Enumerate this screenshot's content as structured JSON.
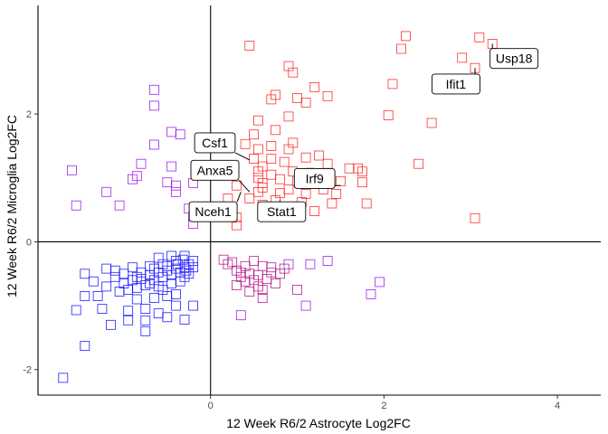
{
  "chart_data": {
    "type": "scatter",
    "xlabel": "12 Week R6/2 Astrocyte Log2FC",
    "ylabel": "12 Week R6/2 Microglia Log2FC",
    "xlim": [
      -1.99,
      4.5
    ],
    "ylim": [
      -2.4,
      3.7
    ],
    "xticks": [
      0,
      2,
      4
    ],
    "yticks": [
      -2,
      0,
      2
    ],
    "xtick_labels": [
      "0",
      "2",
      "4"
    ],
    "ytick_labels": [
      "-2",
      "0",
      "2"
    ],
    "reference_lines": {
      "x": 0,
      "y": 0
    },
    "grid": false,
    "legend": "none",
    "marker": "open-square",
    "groups": [
      {
        "color": "#ff3030",
        "points": [
          [
            0.45,
            3.07
          ],
          [
            2.25,
            3.22
          ],
          [
            2.2,
            3.02
          ],
          [
            3.1,
            3.2
          ],
          [
            3.25,
            3.1
          ],
          [
            2.9,
            2.88
          ],
          [
            3.05,
            2.72
          ],
          [
            0.9,
            2.75
          ],
          [
            0.95,
            2.65
          ],
          [
            1.2,
            2.42
          ],
          [
            1.35,
            2.28
          ],
          [
            2.1,
            2.47
          ],
          [
            0.75,
            2.3
          ],
          [
            0.7,
            2.23
          ],
          [
            1.0,
            2.25
          ],
          [
            1.1,
            2.18
          ],
          [
            2.05,
            1.98
          ],
          [
            0.9,
            1.96
          ],
          [
            0.55,
            1.9
          ],
          [
            2.55,
            1.86
          ],
          [
            0.75,
            1.75
          ],
          [
            0.5,
            1.68
          ],
          [
            0.4,
            1.53
          ],
          [
            0.7,
            1.5
          ],
          [
            0.95,
            1.55
          ],
          [
            0.55,
            1.45
          ],
          [
            0.9,
            1.45
          ],
          [
            1.1,
            1.32
          ],
          [
            1.25,
            1.35
          ],
          [
            0.5,
            1.3
          ],
          [
            0.7,
            1.3
          ],
          [
            0.85,
            1.25
          ],
          [
            1.35,
            1.22
          ],
          [
            2.4,
            1.22
          ],
          [
            0.55,
            1.1
          ],
          [
            0.6,
            1.18
          ],
          [
            0.7,
            1.05
          ],
          [
            0.95,
            1.1
          ],
          [
            1.15,
            1.08
          ],
          [
            1.6,
            1.15
          ],
          [
            1.7,
            1.15
          ],
          [
            1.75,
            1.1
          ],
          [
            0.15,
            1.05
          ],
          [
            0.55,
            1.0
          ],
          [
            0.6,
            0.92
          ],
          [
            0.8,
            0.98
          ],
          [
            1.0,
            0.95
          ],
          [
            1.2,
            1.0
          ],
          [
            1.5,
            0.95
          ],
          [
            1.75,
            0.93
          ],
          [
            0.3,
            0.88
          ],
          [
            0.6,
            0.85
          ],
          [
            0.9,
            0.82
          ],
          [
            1.3,
            0.82
          ],
          [
            0.55,
            0.78
          ],
          [
            0.8,
            0.76
          ],
          [
            1.1,
            0.75
          ],
          [
            1.45,
            0.75
          ],
          [
            0.2,
            0.68
          ],
          [
            0.45,
            0.68
          ],
          [
            0.75,
            0.65
          ],
          [
            1.05,
            0.62
          ],
          [
            1.4,
            0.6
          ],
          [
            1.8,
            0.6
          ],
          [
            0.6,
            0.58
          ],
          [
            0.95,
            0.55
          ],
          [
            0.25,
            0.52
          ],
          [
            1.2,
            0.48
          ],
          [
            0.3,
            0.38
          ],
          [
            3.05,
            0.37
          ],
          [
            0.3,
            0.26
          ]
        ]
      },
      {
        "color": "#a020f0",
        "points": [
          [
            -0.65,
            2.38
          ],
          [
            -0.65,
            2.13
          ],
          [
            -0.45,
            1.72
          ],
          [
            -0.35,
            1.68
          ],
          [
            -0.65,
            1.52
          ],
          [
            -0.8,
            1.22
          ],
          [
            -1.6,
            1.12
          ],
          [
            -0.45,
            1.18
          ],
          [
            -0.85,
            1.03
          ],
          [
            -0.9,
            0.98
          ],
          [
            -0.5,
            0.93
          ],
          [
            -0.2,
            0.92
          ],
          [
            -1.2,
            0.78
          ],
          [
            -0.4,
            0.88
          ],
          [
            -0.4,
            0.78
          ],
          [
            -1.55,
            0.57
          ],
          [
            -1.05,
            0.57
          ],
          [
            -0.25,
            0.52
          ],
          [
            -0.2,
            0.4
          ],
          [
            -0.2,
            0.28
          ],
          [
            1.35,
            -0.3
          ],
          [
            0.9,
            -0.35
          ],
          [
            1.95,
            -0.63
          ],
          [
            1.85,
            -0.82
          ],
          [
            1.1,
            -1.0
          ],
          [
            0.35,
            -1.15
          ],
          [
            1.15,
            -0.35
          ]
        ]
      },
      {
        "color": "#b8208f",
        "points": [
          [
            0.15,
            -0.28
          ],
          [
            0.25,
            -0.32
          ],
          [
            0.4,
            -0.38
          ],
          [
            0.6,
            -0.38
          ],
          [
            0.85,
            -0.42
          ],
          [
            0.3,
            -0.45
          ],
          [
            0.45,
            -0.5
          ],
          [
            0.55,
            -0.52
          ],
          [
            0.7,
            -0.48
          ],
          [
            0.35,
            -0.55
          ],
          [
            0.5,
            -0.6
          ],
          [
            0.65,
            -0.58
          ],
          [
            0.4,
            -0.62
          ],
          [
            0.55,
            -0.7
          ],
          [
            0.45,
            -0.78
          ],
          [
            0.6,
            -0.75
          ],
          [
            0.3,
            -0.68
          ],
          [
            0.8,
            -0.5
          ],
          [
            0.75,
            -0.65
          ],
          [
            0.6,
            -0.88
          ],
          [
            1.0,
            -0.75
          ],
          [
            0.2,
            -0.35
          ],
          [
            0.5,
            -0.3
          ],
          [
            0.35,
            -0.48
          ],
          [
            0.7,
            -0.4
          ]
        ]
      },
      {
        "color": "#2020ff",
        "points": [
          [
            -1.7,
            -2.13
          ],
          [
            -1.45,
            -1.63
          ],
          [
            -1.55,
            -1.07
          ],
          [
            -1.45,
            -0.85
          ],
          [
            -1.15,
            -1.3
          ],
          [
            -0.95,
            -1.23
          ],
          [
            -0.75,
            -1.23
          ],
          [
            -0.95,
            -1.08
          ],
          [
            -0.75,
            -1.05
          ],
          [
            -0.6,
            -1.12
          ],
          [
            -0.5,
            -1.18
          ],
          [
            -0.3,
            -1.22
          ],
          [
            -0.4,
            -1.0
          ],
          [
            -0.2,
            -1.0
          ],
          [
            -0.75,
            -1.4
          ],
          [
            -1.25,
            -1.05
          ],
          [
            -1.3,
            -0.85
          ],
          [
            -0.85,
            -0.9
          ],
          [
            -0.65,
            -0.88
          ],
          [
            -0.4,
            -0.82
          ],
          [
            -1.35,
            -0.62
          ],
          [
            -1.2,
            -0.7
          ],
          [
            -1.1,
            -0.55
          ],
          [
            -1.0,
            -0.65
          ],
          [
            -0.9,
            -0.6
          ],
          [
            -0.8,
            -0.58
          ],
          [
            -0.7,
            -0.52
          ],
          [
            -0.6,
            -0.48
          ],
          [
            -0.5,
            -0.45
          ],
          [
            -0.4,
            -0.42
          ],
          [
            -0.3,
            -0.4
          ],
          [
            -0.25,
            -0.35
          ],
          [
            -0.95,
            -0.75
          ],
          [
            -0.85,
            -0.72
          ],
          [
            -0.75,
            -0.68
          ],
          [
            -0.65,
            -0.6
          ],
          [
            -0.55,
            -0.55
          ],
          [
            -0.45,
            -0.52
          ],
          [
            -0.35,
            -0.48
          ],
          [
            -0.28,
            -0.45
          ],
          [
            -1.45,
            -0.5
          ],
          [
            -1.1,
            -0.45
          ],
          [
            -0.9,
            -0.4
          ],
          [
            -0.7,
            -0.38
          ],
          [
            -0.55,
            -0.35
          ],
          [
            -0.4,
            -0.3
          ],
          [
            -0.32,
            -0.28
          ],
          [
            -0.6,
            -0.25
          ],
          [
            -0.45,
            -0.22
          ],
          [
            -0.3,
            -0.22
          ],
          [
            -1.2,
            -0.42
          ],
          [
            -1.0,
            -0.5
          ],
          [
            -0.8,
            -0.48
          ],
          [
            -0.65,
            -0.42
          ],
          [
            -0.5,
            -0.38
          ],
          [
            -0.38,
            -0.35
          ],
          [
            -0.25,
            -0.5
          ],
          [
            -0.2,
            -0.3
          ],
          [
            -1.05,
            -0.78
          ],
          [
            -0.55,
            -0.75
          ],
          [
            -0.45,
            -0.65
          ],
          [
            -0.35,
            -0.62
          ],
          [
            -0.85,
            -0.55
          ],
          [
            -0.7,
            -0.65
          ],
          [
            -0.6,
            -0.7
          ],
          [
            -0.5,
            -0.85
          ],
          [
            -0.2,
            -0.4
          ],
          [
            -0.3,
            -0.55
          ]
        ]
      }
    ],
    "annotations": [
      {
        "label": "Usp18",
        "point": [
          3.25,
          3.1
        ],
        "label_pos": [
          3.5,
          2.87
        ]
      },
      {
        "label": "Ifit1",
        "point": [
          3.05,
          2.72
        ],
        "label_pos": [
          2.83,
          2.47
        ]
      },
      {
        "label": "Csf1",
        "point": [
          0.45,
          1.28
        ],
        "label_pos": [
          0.05,
          1.55
        ]
      },
      {
        "label": "Anxa5",
        "point": [
          0.45,
          0.78
        ],
        "label_pos": [
          0.05,
          1.12
        ]
      },
      {
        "label": "Irf9",
        "point": [
          1.5,
          0.88
        ],
        "label_pos": [
          1.2,
          0.99
        ]
      },
      {
        "label": "Nceh1",
        "point": [
          0.35,
          0.78
        ],
        "label_pos": [
          0.03,
          0.47
        ]
      },
      {
        "label": "Stat1",
        "point": [
          0.8,
          0.65
        ],
        "label_pos": [
          0.82,
          0.47
        ]
      }
    ]
  }
}
